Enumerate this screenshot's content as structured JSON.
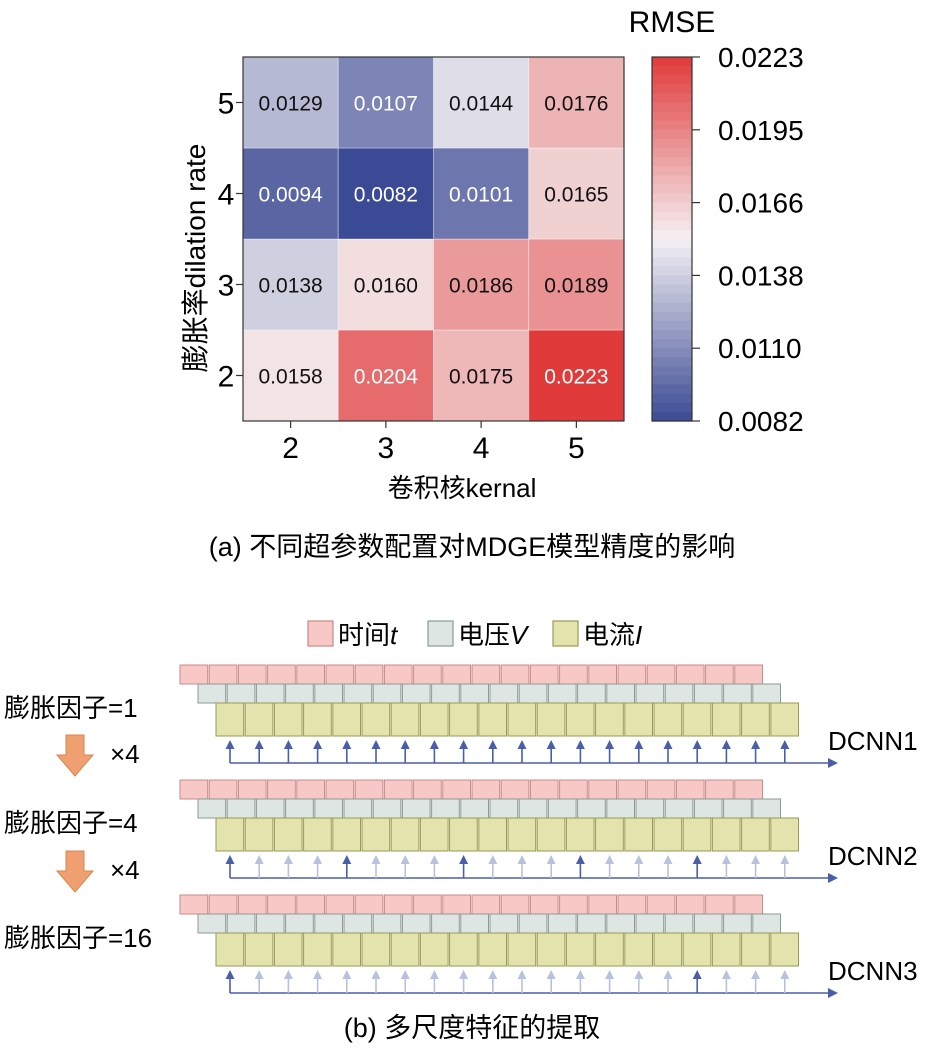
{
  "panel_a": {
    "caption": "(a) 不同超参数配置对MDGE模型精度的影响"
  },
  "chart_data": {
    "type": "heatmap",
    "title": "",
    "xlabel": "卷积核kernal",
    "ylabel": "膨胀率dilation rate",
    "x": [
      "2",
      "3",
      "4",
      "5"
    ],
    "y": [
      "2",
      "3",
      "4",
      "5"
    ],
    "values": [
      [
        0.0158,
        0.0204,
        0.0175,
        0.0223
      ],
      [
        0.0138,
        0.016,
        0.0186,
        0.0189
      ],
      [
        0.0094,
        0.0082,
        0.0101,
        0.0165
      ],
      [
        0.0129,
        0.0107,
        0.0144,
        0.0176
      ]
    ],
    "value_labels": [
      [
        "0.0158",
        "0.0204",
        "0.0175",
        "0.0223"
      ],
      [
        "0.0138",
        "0.0160",
        "0.0186",
        "0.0189"
      ],
      [
        "0.0094",
        "0.0082",
        "0.0101",
        "0.0165"
      ],
      [
        "0.0129",
        "0.0107",
        "0.0144",
        "0.0176"
      ]
    ],
    "colorbar": {
      "title": "RMSE",
      "ticks": [
        "0.0223",
        "0.0195",
        "0.0166",
        "0.0138",
        "0.0110",
        "0.0082"
      ],
      "range": [
        0.0082,
        0.0223
      ],
      "colors": {
        "low": "#3b4a94",
        "mid": "#f4f1f3",
        "high": "#e03a3a"
      }
    }
  },
  "panel_b": {
    "caption": "(b) 多尺度特征的提取",
    "legend": [
      {
        "label": "时间",
        "var": "t",
        "color": "#f7c8c6",
        "border": "#c98a88"
      },
      {
        "label": "电压",
        "var": "V",
        "color": "#dde6e2",
        "border": "#8c9a95"
      },
      {
        "label": "电流",
        "var": "I",
        "color": "#e3e3ad",
        "border": "#9a9a55"
      }
    ],
    "rows": [
      {
        "label": "膨胀因子=1",
        "network": "DCNN1",
        "stride": 1
      },
      {
        "label": "膨胀因子=4",
        "network": "DCNN2",
        "stride": 4
      },
      {
        "label": "膨胀因子=16",
        "network": "DCNN3",
        "stride": 16
      }
    ],
    "arrow_label": "×4",
    "colors": {
      "arrow": "#4a5fa8",
      "faint_arrow": "#b9c2dc",
      "down_arrow": "#f0a070"
    }
  }
}
